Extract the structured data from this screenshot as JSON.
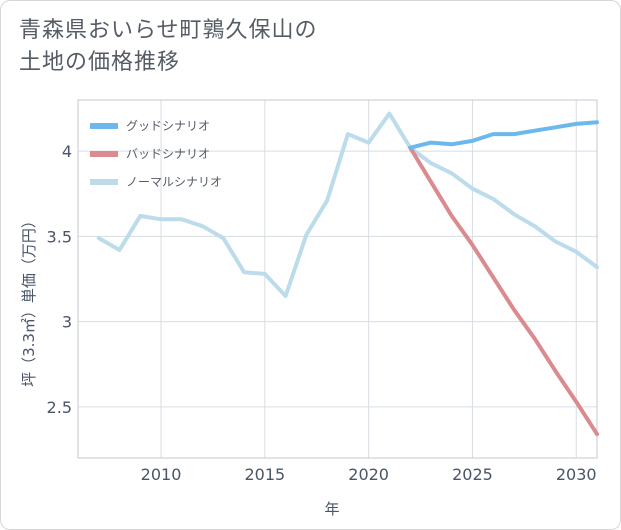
{
  "title_line1": "青森県おいらせ町鶉久保山の",
  "title_line2": "土地の価格推移",
  "chart_data": {
    "type": "line",
    "xlabel": "年",
    "ylabel": "坪（3.3㎡）単価（万円）",
    "xlim": [
      2006,
      2031
    ],
    "ylim": [
      2.2,
      4.3
    ],
    "x_ticks": [
      2010,
      2015,
      2020,
      2025,
      2030
    ],
    "y_ticks": [
      2.5,
      3,
      3.5,
      4
    ],
    "x_tick_labels": [
      "2010",
      "2015",
      "2020",
      "2025",
      "2030"
    ],
    "y_tick_labels": [
      "2.5",
      "3",
      "3.5",
      "4"
    ],
    "grid": true,
    "legend_position": "top-left",
    "series": [
      {
        "name": "グッドシナリオ",
        "color": "#6cb8ec",
        "x": [
          2022,
          2023,
          2024,
          2025,
          2026,
          2027,
          2028,
          2029,
          2030,
          2031
        ],
        "values": [
          4.02,
          4.05,
          4.04,
          4.06,
          4.1,
          4.1,
          4.12,
          4.14,
          4.16,
          4.17
        ]
      },
      {
        "name": "バッドシナリオ",
        "color": "#db8a8e",
        "x": [
          2022,
          2023,
          2024,
          2025,
          2026,
          2027,
          2028,
          2029,
          2030,
          2031
        ],
        "values": [
          4.02,
          3.82,
          3.62,
          3.45,
          3.26,
          3.07,
          2.9,
          2.71,
          2.53,
          2.34
        ]
      },
      {
        "name": "ノーマルシナリオ",
        "color": "#bcdceb",
        "x": [
          2007,
          2008,
          2009,
          2010,
          2011,
          2012,
          2013,
          2014,
          2015,
          2016,
          2017,
          2018,
          2019,
          2020,
          2021,
          2022,
          2023,
          2024,
          2025,
          2026,
          2027,
          2028,
          2029,
          2030,
          2031
        ],
        "values": [
          3.49,
          3.42,
          3.62,
          3.6,
          3.6,
          3.56,
          3.49,
          3.29,
          3.28,
          3.15,
          3.51,
          3.71,
          4.1,
          4.05,
          4.22,
          4.02,
          3.93,
          3.87,
          3.78,
          3.72,
          3.63,
          3.56,
          3.47,
          3.41,
          3.32
        ]
      }
    ]
  }
}
